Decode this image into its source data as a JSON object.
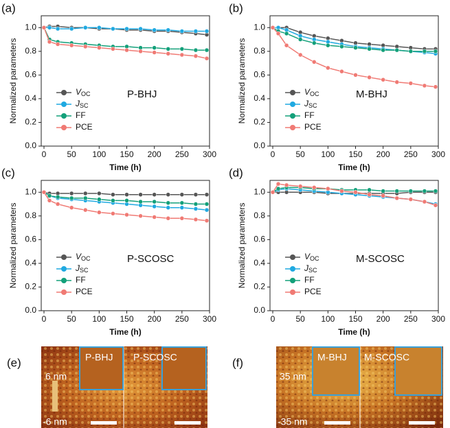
{
  "chart_data": [
    {
      "type": "line",
      "label": "(a)",
      "annotation": "P-BHJ",
      "xlabel": "Time (h)",
      "ylabel": "Normalized parameters",
      "x": [
        0,
        10,
        25,
        50,
        75,
        100,
        125,
        150,
        175,
        200,
        225,
        250,
        275,
        295
      ],
      "xlim": [
        -5,
        300
      ],
      "xticks": [
        0,
        50,
        100,
        150,
        200,
        250,
        300
      ],
      "ylim": [
        0,
        1.1
      ],
      "yticks": [
        {
          "value": 0,
          "label": "0.0"
        },
        0.2,
        0.4,
        0.6,
        0.8,
        {
          "value": 1,
          "label": "1.0"
        }
      ],
      "series": [
        {
          "name": "VOC",
          "color": "#555555",
          "values": [
            1.0,
            1.01,
            1.01,
            1.0,
            1.0,
            0.99,
            0.99,
            0.98,
            0.98,
            0.97,
            0.97,
            0.96,
            0.95,
            0.94
          ]
        },
        {
          "name": "JSC",
          "color": "#1fa9e1",
          "values": [
            1.0,
            1.0,
            0.99,
            0.99,
            1.0,
            1.0,
            0.99,
            0.99,
            0.99,
            0.98,
            0.98,
            0.97,
            0.97,
            0.97
          ]
        },
        {
          "name": "FF",
          "color": "#13a07a",
          "values": [
            1.0,
            0.9,
            0.88,
            0.87,
            0.86,
            0.85,
            0.84,
            0.84,
            0.83,
            0.83,
            0.82,
            0.82,
            0.81,
            0.81
          ]
        },
        {
          "name": "PCE",
          "color": "#f07a74",
          "values": [
            1.0,
            0.88,
            0.86,
            0.85,
            0.84,
            0.83,
            0.82,
            0.81,
            0.8,
            0.79,
            0.78,
            0.77,
            0.76,
            0.74
          ]
        }
      ]
    },
    {
      "type": "line",
      "label": "(b)",
      "annotation": "M-BHJ",
      "xlabel": "Time (h)",
      "ylabel": "Normalized parameters",
      "x": [
        0,
        10,
        25,
        50,
        75,
        100,
        125,
        150,
        175,
        200,
        225,
        250,
        275,
        295
      ],
      "xlim": [
        -5,
        300
      ],
      "xticks": [
        0,
        50,
        100,
        150,
        200,
        250,
        300
      ],
      "ylim": [
        0,
        1.1
      ],
      "yticks": [
        {
          "value": 0,
          "label": "0.0"
        },
        0.2,
        0.4,
        0.6,
        0.8,
        {
          "value": 1,
          "label": "1.0"
        }
      ],
      "series": [
        {
          "name": "VOC",
          "color": "#555555",
          "values": [
            1.0,
            1.0,
            1.0,
            0.96,
            0.93,
            0.91,
            0.89,
            0.87,
            0.86,
            0.85,
            0.84,
            0.83,
            0.82,
            0.82
          ]
        },
        {
          "name": "JSC",
          "color": "#1fa9e1",
          "values": [
            1.0,
            1.0,
            0.98,
            0.93,
            0.9,
            0.88,
            0.86,
            0.84,
            0.83,
            0.82,
            0.81,
            0.8,
            0.79,
            0.78
          ]
        },
        {
          "name": "FF",
          "color": "#13a07a",
          "values": [
            1.0,
            0.97,
            0.95,
            0.9,
            0.87,
            0.85,
            0.84,
            0.83,
            0.82,
            0.81,
            0.81,
            0.8,
            0.8,
            0.8
          ]
        },
        {
          "name": "PCE",
          "color": "#f07a74",
          "values": [
            1.0,
            0.95,
            0.85,
            0.77,
            0.71,
            0.66,
            0.63,
            0.6,
            0.58,
            0.56,
            0.54,
            0.53,
            0.51,
            0.5
          ]
        }
      ]
    },
    {
      "type": "line",
      "label": "(c)",
      "annotation": "P-SCOSC",
      "xlabel": "Time (h)",
      "ylabel": "Normalized parameters",
      "x": [
        0,
        10,
        25,
        50,
        75,
        100,
        125,
        150,
        175,
        200,
        225,
        250,
        275,
        295
      ],
      "xlim": [
        -5,
        300
      ],
      "xticks": [
        0,
        50,
        100,
        150,
        200,
        250,
        300
      ],
      "ylim": [
        0,
        1.1
      ],
      "yticks": [
        {
          "value": 0,
          "label": "0.0"
        },
        0.2,
        0.4,
        0.6,
        0.8,
        {
          "value": 1,
          "label": "1.0"
        }
      ],
      "series": [
        {
          "name": "VOC",
          "color": "#555555",
          "values": [
            1.0,
            0.99,
            0.99,
            0.99,
            0.99,
            0.99,
            0.98,
            0.98,
            0.98,
            0.98,
            0.98,
            0.98,
            0.98,
            0.98
          ]
        },
        {
          "name": "JSC",
          "color": "#1fa9e1",
          "values": [
            1.0,
            0.97,
            0.95,
            0.94,
            0.93,
            0.92,
            0.91,
            0.9,
            0.89,
            0.88,
            0.87,
            0.87,
            0.86,
            0.85
          ]
        },
        {
          "name": "FF",
          "color": "#13a07a",
          "values": [
            1.0,
            0.97,
            0.96,
            0.95,
            0.95,
            0.94,
            0.93,
            0.93,
            0.92,
            0.92,
            0.91,
            0.91,
            0.9,
            0.9
          ]
        },
        {
          "name": "PCE",
          "color": "#f07a74",
          "values": [
            1.0,
            0.93,
            0.9,
            0.87,
            0.85,
            0.83,
            0.82,
            0.81,
            0.8,
            0.79,
            0.78,
            0.78,
            0.77,
            0.76
          ]
        }
      ]
    },
    {
      "type": "line",
      "label": "(d)",
      "annotation": "M-SCOSC",
      "xlabel": "Time (h)",
      "ylabel": "Normalized parameters",
      "x": [
        0,
        10,
        25,
        50,
        75,
        100,
        125,
        150,
        175,
        200,
        225,
        250,
        275,
        295
      ],
      "xlim": [
        -5,
        300
      ],
      "xticks": [
        0,
        50,
        100,
        150,
        200,
        250,
        300
      ],
      "ylim": [
        0,
        1.1
      ],
      "yticks": [
        {
          "value": 0,
          "label": "0.0"
        },
        0.2,
        0.4,
        0.6,
        0.8,
        {
          "value": 1,
          "label": "1.0"
        }
      ],
      "series": [
        {
          "name": "VOC",
          "color": "#555555",
          "values": [
            1.0,
            1.0,
            1.0,
            1.0,
            1.0,
            0.99,
            0.99,
            0.99,
            0.99,
            0.99,
            0.99,
            1.0,
            1.0,
            1.0
          ]
        },
        {
          "name": "JSC",
          "color": "#1fa9e1",
          "values": [
            1.0,
            1.02,
            1.03,
            1.02,
            1.01,
            1.0,
            0.99,
            0.98,
            0.97,
            0.96,
            0.95,
            0.94,
            0.92,
            0.9
          ]
        },
        {
          "name": "FF",
          "color": "#13a07a",
          "values": [
            1.0,
            1.03,
            1.04,
            1.04,
            1.03,
            1.03,
            1.02,
            1.02,
            1.02,
            1.01,
            1.01,
            1.01,
            1.01,
            1.01
          ]
        },
        {
          "name": "PCE",
          "color": "#f07a74",
          "values": [
            1.0,
            1.07,
            1.06,
            1.05,
            1.04,
            1.03,
            1.01,
            1.0,
            0.98,
            0.97,
            0.95,
            0.94,
            0.92,
            0.89
          ]
        }
      ]
    }
  ],
  "images": [
    {
      "label": "(e)",
      "left": "P-BHJ",
      "right": "P-SCOSC",
      "scale_max": "6 nm",
      "scale_min": "-6 nm"
    },
    {
      "label": "(f)",
      "left": "M-BHJ",
      "right": "M-SCOSC",
      "scale_max": "35 nm",
      "scale_min": "-35 nm"
    }
  ]
}
